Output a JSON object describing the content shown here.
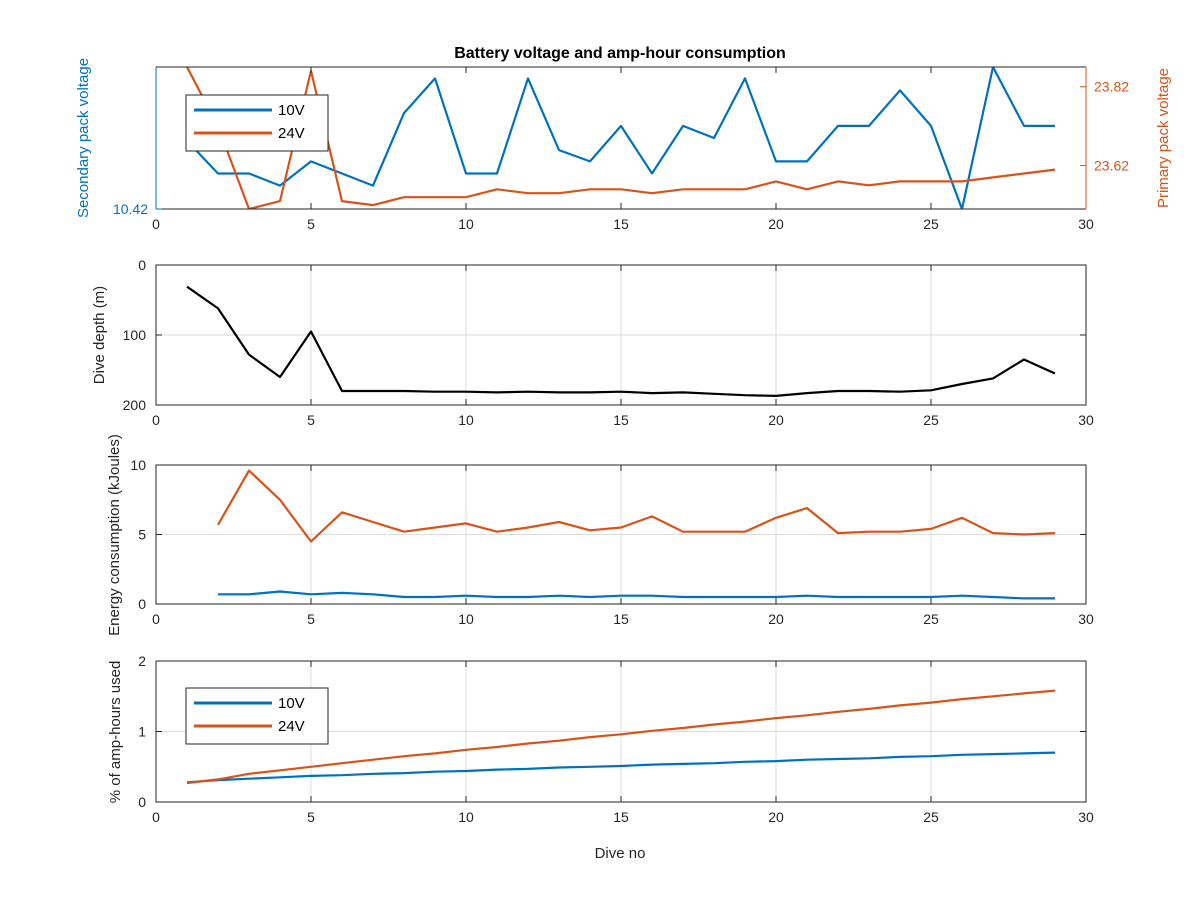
{
  "chart_data": [
    {
      "type": "line",
      "title": "Battery voltage and amp-hour consumption",
      "xlabel": "",
      "xlim": [
        0,
        30
      ],
      "xticks": [
        "0",
        "5",
        "10",
        "15",
        "20",
        "25",
        "30"
      ],
      "ylabel_left": "Secondary pack voltage",
      "ylabel_right": "Primary pack voltage",
      "ylim_left": [
        10.42,
        10.62
      ],
      "ylim_right": [
        23.51,
        23.87
      ],
      "yticks_left": [
        {
          "value": 10.42,
          "label": "10.42"
        }
      ],
      "yticks_right": [
        {
          "value": 23.62,
          "label": "23.62"
        },
        {
          "value": 23.82,
          "label": "23.82"
        }
      ],
      "legend": {
        "position": "top-left",
        "entries": [
          "10V",
          "24V"
        ]
      },
      "grid": false,
      "series": [
        {
          "name": "10V",
          "axis": "left",
          "color": "#0072bd",
          "x": [
            1,
            2,
            3,
            4,
            5,
            6,
            7,
            8,
            9,
            10,
            11,
            12,
            13,
            14,
            15,
            16,
            17,
            18,
            19,
            20,
            21,
            22,
            23,
            24,
            25,
            26,
            27,
            28,
            29
          ],
          "y": [
            10.516,
            10.47,
            10.47,
            10.453,
            10.487,
            10.47,
            10.453,
            10.555,
            10.604,
            10.47,
            10.47,
            10.604,
            10.503,
            10.487,
            10.537,
            10.47,
            10.537,
            10.52,
            10.604,
            10.487,
            10.487,
            10.537,
            10.537,
            10.587,
            10.537,
            10.42,
            10.62,
            10.537,
            10.537
          ]
        },
        {
          "name": "24V",
          "axis": "right",
          "color": "#d95319",
          "x": [
            1,
            2,
            3,
            4,
            5,
            6,
            7,
            8,
            9,
            10,
            11,
            12,
            13,
            14,
            15,
            16,
            17,
            18,
            19,
            20,
            21,
            22,
            23,
            24,
            25,
            26,
            27,
            28,
            29
          ],
          "y": [
            23.87,
            23.72,
            23.51,
            23.53,
            23.86,
            23.53,
            23.52,
            23.54,
            23.54,
            23.54,
            23.56,
            23.55,
            23.55,
            23.56,
            23.56,
            23.55,
            23.56,
            23.56,
            23.56,
            23.58,
            23.56,
            23.58,
            23.57,
            23.58,
            23.58,
            23.58,
            23.59,
            23.6,
            23.61
          ]
        }
      ]
    },
    {
      "type": "line",
      "title": "",
      "xlabel": "",
      "ylabel": "Dive depth (m)",
      "xlim": [
        0,
        30
      ],
      "ylim": [
        0,
        200
      ],
      "y_reversed": true,
      "xticks": [
        "0",
        "5",
        "10",
        "15",
        "20",
        "25",
        "30"
      ],
      "yticks": [
        "0",
        "100",
        "200"
      ],
      "grid": true,
      "series": [
        {
          "name": "",
          "color": "#000000",
          "x": [
            1,
            2,
            3,
            4,
            5,
            6,
            7,
            8,
            9,
            10,
            11,
            12,
            13,
            14,
            15,
            16,
            17,
            18,
            19,
            20,
            21,
            22,
            23,
            24,
            25,
            26,
            27,
            28,
            29
          ],
          "y": [
            31,
            62,
            128,
            160,
            95,
            180,
            180,
            180,
            181,
            181,
            182,
            181,
            182,
            182,
            181,
            183,
            182,
            184,
            186,
            187,
            183,
            180,
            180,
            181,
            179,
            170,
            162,
            135,
            155
          ]
        }
      ]
    },
    {
      "type": "line",
      "title": "",
      "xlabel": "",
      "ylabel": "Energy consumption (kJoules)",
      "xlim": [
        0,
        30
      ],
      "ylim": [
        0,
        10
      ],
      "xticks": [
        "0",
        "5",
        "10",
        "15",
        "20",
        "25",
        "30"
      ],
      "yticks": [
        "0",
        "5",
        "10"
      ],
      "grid": true,
      "series": [
        {
          "name": "24V",
          "color": "#d95319",
          "x": [
            2,
            3,
            4,
            5,
            6,
            7,
            8,
            9,
            10,
            11,
            12,
            13,
            14,
            15,
            16,
            17,
            18,
            19,
            20,
            21,
            22,
            23,
            24,
            25,
            26,
            27,
            28,
            29
          ],
          "y": [
            5.7,
            9.6,
            7.5,
            4.5,
            6.6,
            5.9,
            5.2,
            5.5,
            5.8,
            5.2,
            5.5,
            5.9,
            5.3,
            5.5,
            6.3,
            5.2,
            5.2,
            5.2,
            6.2,
            6.9,
            5.1,
            5.2,
            5.2,
            5.4,
            6.2,
            5.1,
            5.0,
            5.1
          ]
        },
        {
          "name": "10V",
          "color": "#0072bd",
          "x": [
            2,
            3,
            4,
            5,
            6,
            7,
            8,
            9,
            10,
            11,
            12,
            13,
            14,
            15,
            16,
            17,
            18,
            19,
            20,
            21,
            22,
            23,
            24,
            25,
            26,
            27,
            28,
            29
          ],
          "y": [
            0.7,
            0.7,
            0.9,
            0.7,
            0.8,
            0.7,
            0.5,
            0.5,
            0.6,
            0.5,
            0.5,
            0.6,
            0.5,
            0.6,
            0.6,
            0.5,
            0.5,
            0.5,
            0.5,
            0.6,
            0.5,
            0.5,
            0.5,
            0.5,
            0.6,
            0.5,
            0.4,
            0.4
          ]
        }
      ]
    },
    {
      "type": "line",
      "title": "",
      "xlabel": "Dive no",
      "ylabel": "% of amp-hours used",
      "xlim": [
        0,
        30
      ],
      "ylim": [
        0,
        2
      ],
      "xticks": [
        "0",
        "5",
        "10",
        "15",
        "20",
        "25",
        "30"
      ],
      "yticks": [
        "0",
        "1",
        "2"
      ],
      "grid": true,
      "legend": {
        "position": "bottom-left",
        "entries": [
          "10V",
          "24V"
        ]
      },
      "series": [
        {
          "name": "10V",
          "color": "#0072bd",
          "x": [
            1,
            2,
            3,
            4,
            5,
            6,
            7,
            8,
            9,
            10,
            11,
            12,
            13,
            14,
            15,
            16,
            17,
            18,
            19,
            20,
            21,
            22,
            23,
            24,
            25,
            26,
            27,
            28,
            29
          ],
          "y": [
            0.28,
            0.31,
            0.33,
            0.35,
            0.37,
            0.38,
            0.4,
            0.41,
            0.43,
            0.44,
            0.46,
            0.47,
            0.49,
            0.5,
            0.51,
            0.53,
            0.54,
            0.55,
            0.57,
            0.58,
            0.6,
            0.61,
            0.62,
            0.64,
            0.65,
            0.67,
            0.68,
            0.69,
            0.7
          ]
        },
        {
          "name": "24V",
          "color": "#d95319",
          "x": [
            1,
            2,
            3,
            4,
            5,
            6,
            7,
            8,
            9,
            10,
            11,
            12,
            13,
            14,
            15,
            16,
            17,
            18,
            19,
            20,
            21,
            22,
            23,
            24,
            25,
            26,
            27,
            28,
            29
          ],
          "y": [
            0.27,
            0.32,
            0.4,
            0.45,
            0.5,
            0.55,
            0.6,
            0.65,
            0.69,
            0.74,
            0.78,
            0.83,
            0.87,
            0.92,
            0.96,
            1.01,
            1.05,
            1.1,
            1.14,
            1.19,
            1.23,
            1.28,
            1.32,
            1.37,
            1.41,
            1.46,
            1.5,
            1.54,
            1.58
          ]
        }
      ]
    }
  ]
}
